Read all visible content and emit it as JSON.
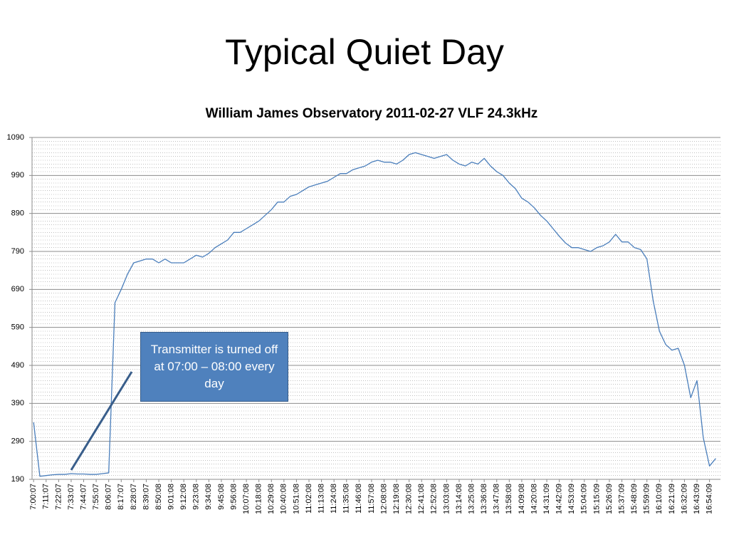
{
  "slide_title": "Typical Quiet Day",
  "chart_data": {
    "type": "line",
    "title": "William James Observatory 2011-02-27    VLF 24.3kHz",
    "annotation": "Transmitter is turned off at 07:00 – 08:00 every day",
    "categories": [
      "7:00:07",
      null,
      "7:11:07",
      null,
      "7:22:07",
      null,
      "7:33:07",
      null,
      "7:44:07",
      null,
      "7:55:07",
      null,
      "8:06:07",
      null,
      "8:17:07",
      null,
      "8:28:07",
      null,
      "8:39:07",
      null,
      "8:50:08",
      null,
      "9:01:08",
      null,
      "9:12:08",
      null,
      "9:23:08",
      null,
      "9:34:08",
      null,
      "9:45:08",
      null,
      "9:56:08",
      null,
      "10:07:08",
      null,
      "10:18:08",
      null,
      "10:29:08",
      null,
      "10:40:08",
      null,
      "10:51:08",
      null,
      "11:02:08",
      null,
      "11:13:08",
      null,
      "11:24:08",
      null,
      "11:35:08",
      null,
      "11:46:08",
      null,
      "11:57:08",
      null,
      "12:08:08",
      null,
      "12:19:08",
      null,
      "12:30:08",
      null,
      "12:41:08",
      null,
      "12:52:08",
      null,
      "13:03:08",
      null,
      "13:14:08",
      null,
      "13:25:08",
      null,
      "13:36:08",
      null,
      "13:47:08",
      null,
      "13:58:08",
      null,
      "14:09:08",
      null,
      "14:20:08",
      null,
      "14:31:09",
      null,
      "14:42:09",
      null,
      "14:53:09",
      null,
      "15:04:09",
      null,
      "15:15:09",
      null,
      "15:26:09",
      null,
      "15:37:09",
      null,
      "15:48:09",
      null,
      "15:59:09",
      null,
      "16:10:09",
      null,
      "16:21:09",
      null,
      "16:32:09",
      null,
      "16:43:09",
      null,
      "16:54:09",
      null
    ],
    "values": [
      340,
      198,
      200,
      202,
      203,
      203,
      205,
      204,
      204,
      203,
      203,
      205,
      207,
      655,
      690,
      730,
      760,
      765,
      770,
      770,
      760,
      770,
      760,
      760,
      760,
      770,
      780,
      775,
      785,
      800,
      810,
      820,
      840,
      840,
      850,
      860,
      870,
      885,
      900,
      920,
      920,
      935,
      940,
      950,
      960,
      965,
      970,
      975,
      985,
      995,
      995,
      1005,
      1010,
      1015,
      1025,
      1030,
      1025,
      1025,
      1020,
      1030,
      1045,
      1050,
      1045,
      1040,
      1035,
      1040,
      1045,
      1030,
      1020,
      1015,
      1025,
      1020,
      1035,
      1015,
      1000,
      990,
      970,
      955,
      930,
      920,
      905,
      885,
      870,
      850,
      830,
      812,
      800,
      800,
      795,
      790,
      800,
      805,
      815,
      835,
      815,
      815,
      800,
      795,
      770,
      660,
      580,
      545,
      530,
      535,
      490,
      405,
      450,
      300,
      225,
      245
    ],
    "color": "#4a7ebb",
    "ylim": [
      190,
      1090
    ],
    "yticks": [
      190,
      290,
      390,
      490,
      590,
      690,
      790,
      890,
      990,
      1090
    ],
    "grid": true,
    "minor_grid": true
  }
}
